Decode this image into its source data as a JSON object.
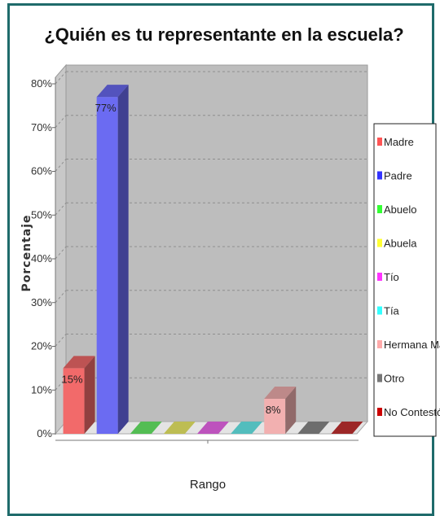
{
  "chart_data": {
    "type": "bar",
    "title": "¿Quién es tu representante en la escuela?",
    "xlabel": "Rango",
    "ylabel": "Porcentaje",
    "ylim": [
      0,
      80
    ],
    "yticks": [
      "0%",
      "10%",
      "20%",
      "30%",
      "40%",
      "50%",
      "60%",
      "70%",
      "80%"
    ],
    "grid": true,
    "legend_position": "right",
    "categories": [
      "Madre",
      "Padre",
      "Abuelo",
      "Abuela",
      "Tío",
      "Tía",
      "Hermana Mayor",
      "Otro",
      "No Contestó"
    ],
    "values": [
      15,
      77,
      0,
      0,
      0,
      0,
      8,
      0,
      0
    ],
    "data_labels": [
      "15%",
      "77%",
      "",
      "",
      "",
      "",
      "8%",
      "",
      ""
    ],
    "colors": [
      "#f26a6a",
      "#6b6bf2",
      "#6af26a",
      "#f2f26a",
      "#f26af2",
      "#6af2f2",
      "#f2b0b0",
      "#8c8c8c",
      "#c83232"
    ],
    "legend_colors": [
      "#ff5555",
      "#3333ff",
      "#33ff33",
      "#ffff33",
      "#ff33ff",
      "#33ffff",
      "#ffaaaa",
      "#777777",
      "#cc0000"
    ]
  }
}
